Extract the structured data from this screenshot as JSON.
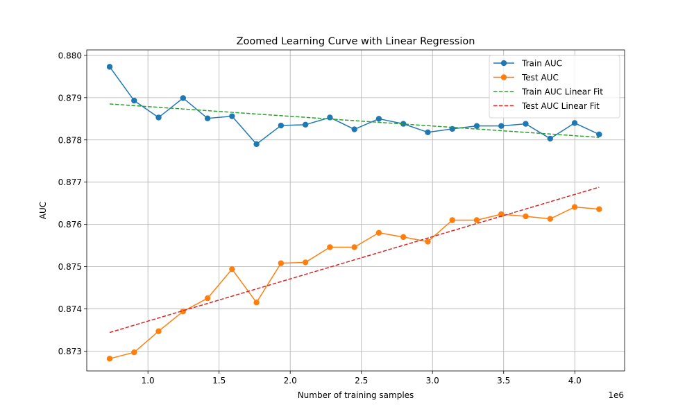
{
  "chart_data": {
    "type": "line",
    "title": "Zoomed Learning Curve with Linear Regression",
    "xlabel": "Number of training samples",
    "ylabel": "AUC",
    "x_offset_label": "1e6",
    "xlim": [
      0.57,
      4.35
    ],
    "ylim": [
      0.87253,
      0.88013
    ],
    "xticks": [
      1.0,
      1.5,
      2.0,
      2.5,
      3.0,
      3.5,
      4.0
    ],
    "xtick_labels": [
      "1.0",
      "1.5",
      "2.0",
      "2.5",
      "3.0",
      "3.5",
      "4.0"
    ],
    "yticks": [
      0.873,
      0.874,
      0.875,
      0.876,
      0.877,
      0.878,
      0.879,
      0.88
    ],
    "ytick_labels": [
      "0.873",
      "0.874",
      "0.875",
      "0.876",
      "0.877",
      "0.878",
      "0.879",
      "0.880"
    ],
    "grid": true,
    "legend_position": "top-right",
    "x": [
      0.731,
      0.903,
      1.075,
      1.247,
      1.419,
      1.591,
      1.763,
      1.935,
      2.107,
      2.279,
      2.451,
      2.623,
      2.795,
      2.967,
      3.139,
      3.311,
      3.483,
      3.655,
      3.827,
      3.999,
      4.171
    ],
    "series": [
      {
        "name": "Train AUC",
        "kind": "line-marker",
        "color": "#1f77b4",
        "values": [
          0.87973,
          0.87893,
          0.87853,
          0.87899,
          0.87851,
          0.87856,
          0.8779,
          0.87834,
          0.87836,
          0.87853,
          0.87825,
          0.8785,
          0.87838,
          0.87818,
          0.87826,
          0.87833,
          0.87833,
          0.87838,
          0.87803,
          0.8784,
          0.87813
        ]
      },
      {
        "name": "Test AUC",
        "kind": "line-marker",
        "color": "#ff7f0e",
        "values": [
          0.87282,
          0.87297,
          0.87347,
          0.87394,
          0.87425,
          0.87494,
          0.87415,
          0.87508,
          0.8751,
          0.87546,
          0.87546,
          0.8758,
          0.8757,
          0.87559,
          0.8761,
          0.8761,
          0.87624,
          0.87619,
          0.87613,
          0.87641,
          0.87636
        ]
      },
      {
        "name": "Train AUC Linear Fit",
        "kind": "dashed",
        "color": "#2ca02c",
        "x": [
          0.731,
          4.171
        ],
        "values": [
          0.87885,
          0.87806
        ]
      },
      {
        "name": "Test AUC Linear Fit",
        "kind": "dashed",
        "color": "#d62728",
        "x": [
          0.731,
          4.171
        ],
        "values": [
          0.87344,
          0.87688
        ]
      }
    ]
  }
}
